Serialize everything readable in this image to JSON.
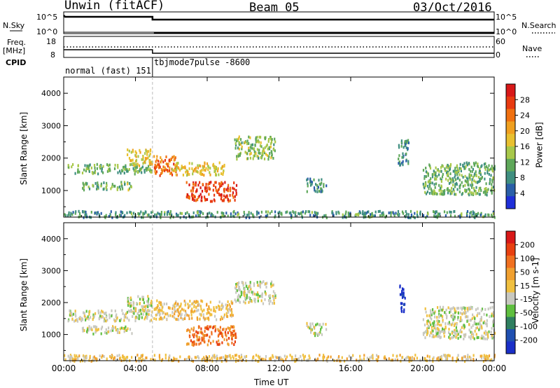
{
  "header": {
    "radar": "Unwin (fitACF)",
    "beam": "Beam 05",
    "date": "03/Oct/2016"
  },
  "left_labels": {
    "nsky": "N.Sky",
    "freq_line1": "Freq.",
    "freq_line2": "[MHz]",
    "cpid": "CPID"
  },
  "right_labels": {
    "nsearch": "N.Search",
    "nave": "Nave"
  },
  "cpid_segments": [
    "normal (fast) 151",
    "tbjmode7pulse -8600"
  ],
  "chart_data": [
    {
      "type": "line",
      "name": "noise",
      "left_ticks": [
        "10^5",
        "10^0"
      ],
      "right_ticks": [
        "10^5",
        "10^0"
      ]
    },
    {
      "type": "line",
      "name": "frequency and nave",
      "left_ticks": [
        "18",
        "8"
      ],
      "right_ticks": [
        "60",
        "0"
      ]
    },
    {
      "type": "heatmap",
      "variable": "power",
      "ylabel": "Slant Range [km]",
      "y_ticks": [
        1000,
        2000,
        3000,
        4000
      ],
      "ylim": [
        180,
        4500
      ],
      "colorbar_label": "Power [dB]",
      "colorbar_ticks": [
        4,
        8,
        12,
        16,
        20,
        24,
        28
      ],
      "colors": [
        "#1f2fd8",
        "#2a5fa8",
        "#3f8f80",
        "#5fa85a",
        "#a8c84a",
        "#e8c030",
        "#f0a020",
        "#f07010",
        "#e83a10",
        "#d81818"
      ],
      "blobs": [
        {
          "t0": 0.2,
          "t1": 4.9,
          "r0": 1550,
          "r1": 1850,
          "power": 9
        },
        {
          "t0": 1.0,
          "t1": 3.8,
          "r0": 1050,
          "r1": 1300,
          "power": 10
        },
        {
          "t0": 3.5,
          "t1": 4.9,
          "r0": 1800,
          "r1": 2300,
          "power": 14
        },
        {
          "t0": 5.0,
          "t1": 6.3,
          "r0": 1500,
          "r1": 2100,
          "power": 22
        },
        {
          "t0": 6.0,
          "t1": 9.0,
          "r0": 1500,
          "r1": 1900,
          "power": 15
        },
        {
          "t0": 6.8,
          "t1": 9.6,
          "r0": 700,
          "r1": 1300,
          "power": 24
        },
        {
          "t0": 9.5,
          "t1": 11.8,
          "r0": 2000,
          "r1": 2700,
          "power": 11
        },
        {
          "t0": 13.5,
          "t1": 14.6,
          "r0": 1000,
          "r1": 1400,
          "power": 6
        },
        {
          "t0": 18.6,
          "t1": 19.2,
          "r0": 1800,
          "r1": 2600,
          "power": 6
        },
        {
          "t0": 20.0,
          "t1": 24.0,
          "r0": 900,
          "r1": 1900,
          "power": 9
        },
        {
          "t0": 0.0,
          "t1": 24.0,
          "r0": 200,
          "r1": 400,
          "power": 7
        }
      ]
    },
    {
      "type": "heatmap",
      "variable": "velocity",
      "ylabel": "Slant Range [km]",
      "xlabel": "Time UT",
      "x_ticks": [
        "00:00",
        "04:00",
        "08:00",
        "12:00",
        "16:00",
        "20:00",
        "00:00"
      ],
      "y_ticks": [
        1000,
        2000,
        3000,
        4000
      ],
      "ylim": [
        180,
        4500
      ],
      "colorbar_label": "Velocity [m s-1]",
      "colorbar_ticks": [
        "200",
        "100",
        "50",
        "15",
        "-15",
        "-50",
        "-100",
        "-200"
      ],
      "colors": [
        "#1a2fc8",
        "#1f4fb0",
        "#2f7f60",
        "#5fbf3f",
        "#c8c8c0",
        "#f0c040",
        "#f0a030",
        "#f07020",
        "#e84010",
        "#d81818"
      ],
      "blobs": [
        {
          "t0": 0.2,
          "t1": 4.9,
          "r0": 1450,
          "r1": 1800,
          "vel": 4
        },
        {
          "t0": 1.0,
          "t1": 3.8,
          "r0": 1050,
          "r1": 1300,
          "vel": 4
        },
        {
          "t0": 3.5,
          "t1": 4.9,
          "r0": 1750,
          "r1": 2250,
          "vel": 4
        },
        {
          "t0": 5.0,
          "t1": 9.4,
          "r0": 1500,
          "r1": 2100,
          "vel": 5
        },
        {
          "t0": 6.8,
          "t1": 9.6,
          "r0": 700,
          "r1": 1300,
          "vel": 7
        },
        {
          "t0": 9.5,
          "t1": 11.8,
          "r0": 2000,
          "r1": 2700,
          "vel": 4
        },
        {
          "t0": 13.5,
          "t1": 14.6,
          "r0": 1000,
          "r1": 1400,
          "vel": 4
        },
        {
          "t0": 18.7,
          "t1": 19.0,
          "r0": 1600,
          "r1": 2600,
          "vel": 0
        },
        {
          "t0": 20.0,
          "t1": 24.0,
          "r0": 900,
          "r1": 1900,
          "vel": 4
        },
        {
          "t0": 0.0,
          "t1": 24.0,
          "r0": 200,
          "r1": 400,
          "vel": 5
        }
      ]
    }
  ]
}
